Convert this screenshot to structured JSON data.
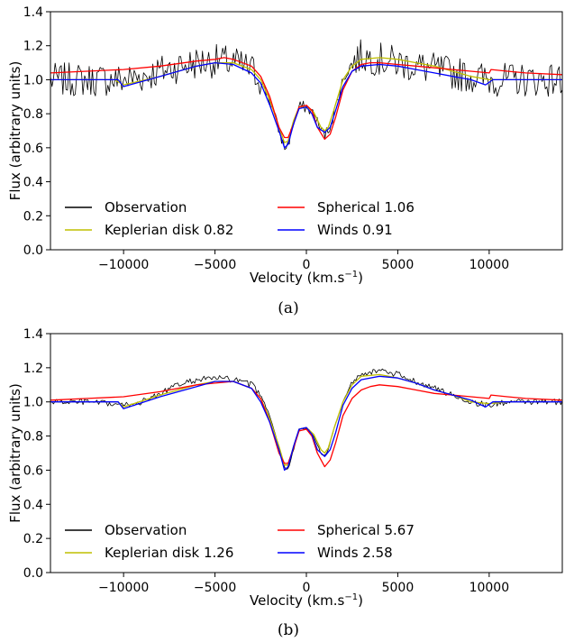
{
  "chart_data": [
    {
      "type": "line",
      "caption": "(a)",
      "xlabel": "Velocity (km.s",
      "xlabel_sup": "−1",
      "xlabel_close": ")",
      "ylabel": "Flux (arbitrary units)",
      "xlim": [
        -14000,
        14000
      ],
      "ylim": [
        0.0,
        1.4
      ],
      "xticks": [
        -10000,
        -5000,
        0,
        5000,
        10000
      ],
      "xtick_labels": [
        "−10000",
        "−5000",
        "0",
        "5000",
        "10000"
      ],
      "yticks": [
        0.0,
        0.2,
        0.4,
        0.6,
        0.8,
        1.0,
        1.2,
        1.4
      ],
      "ytick_labels": [
        "0.0",
        "0.2",
        "0.4",
        "0.6",
        "0.8",
        "1.0",
        "1.2",
        "1.4"
      ],
      "grid": false,
      "legend_position": "lower-left",
      "noise_amplitude": 0.1,
      "series": [
        {
          "name": "Observation",
          "value": "",
          "color": "#000000",
          "noisy": true,
          "x": [
            -14000,
            -13000,
            -12000,
            -11000,
            -10000,
            -9000,
            -8000,
            -7000,
            -6000,
            -5000,
            -4000,
            -3000,
            -2500,
            -2000,
            -1500,
            -1200,
            -1000,
            -700,
            -400,
            0,
            400,
            800,
            1000,
            1200,
            1500,
            2000,
            2500,
            3000,
            4000,
            5000,
            6000,
            7000,
            8000,
            9000,
            10000,
            11000,
            12000,
            13000,
            14000
          ],
          "y": [
            1.0,
            1.0,
            1.0,
            1.0,
            1.0,
            1.02,
            1.05,
            1.08,
            1.1,
            1.11,
            1.1,
            1.06,
            1.0,
            0.88,
            0.7,
            0.6,
            0.62,
            0.75,
            0.84,
            0.84,
            0.8,
            0.7,
            0.68,
            0.7,
            0.8,
            1.0,
            1.1,
            1.14,
            1.12,
            1.1,
            1.08,
            1.06,
            1.04,
            1.02,
            1.0,
            1.0,
            1.0,
            1.0,
            1.0
          ]
        },
        {
          "name": "Keplerian disk",
          "value": "0.82",
          "color": "#bfbf00",
          "noisy": false,
          "x": [
            -14000,
            -12000,
            -10500,
            -10000,
            -8000,
            -7000,
            -6000,
            -5000,
            -4000,
            -3000,
            -2500,
            -2000,
            -1500,
            -1200,
            -1000,
            -700,
            -400,
            0,
            400,
            800,
            1000,
            1200,
            1500,
            2000,
            2500,
            3000,
            4000,
            5000,
            6000,
            7000,
            8000,
            9000,
            10000,
            11000,
            12000,
            14000
          ],
          "y": [
            1.0,
            1.0,
            1.0,
            0.97,
            1.02,
            1.05,
            1.08,
            1.1,
            1.1,
            1.06,
            1.0,
            0.88,
            0.72,
            0.63,
            0.64,
            0.76,
            0.84,
            0.84,
            0.81,
            0.72,
            0.7,
            0.72,
            0.82,
            1.0,
            1.08,
            1.12,
            1.13,
            1.12,
            1.1,
            1.08,
            1.05,
            1.02,
            1.0,
            1.0,
            1.0,
            1.0
          ]
        },
        {
          "name": "Spherical",
          "value": "1.06",
          "color": "#ff0000",
          "noisy": false,
          "x": [
            -14000,
            -12000,
            -10000,
            -8000,
            -6000,
            -5000,
            -4500,
            -4000,
            -3000,
            -2500,
            -2000,
            -1500,
            -1200,
            -1000,
            -700,
            -400,
            0,
            300,
            600,
            1000,
            1300,
            1600,
            2000,
            2500,
            3000,
            3500,
            4000,
            5000,
            6000,
            7000,
            8000,
            9000,
            10000,
            10100,
            11000,
            12000,
            14000
          ],
          "y": [
            1.04,
            1.05,
            1.06,
            1.08,
            1.11,
            1.12,
            1.13,
            1.12,
            1.08,
            1.02,
            0.9,
            0.72,
            0.66,
            0.66,
            0.74,
            0.84,
            0.85,
            0.82,
            0.72,
            0.65,
            0.68,
            0.78,
            0.94,
            1.05,
            1.09,
            1.1,
            1.1,
            1.09,
            1.08,
            1.07,
            1.06,
            1.05,
            1.04,
            1.06,
            1.05,
            1.04,
            1.03
          ]
        },
        {
          "name": "Winds",
          "value": "0.91",
          "color": "#0000ff",
          "noisy": false,
          "x": [
            -14000,
            -12000,
            -10300,
            -10000,
            -8000,
            -6000,
            -5000,
            -4000,
            -3000,
            -2500,
            -2000,
            -1500,
            -1200,
            -1000,
            -700,
            -400,
            0,
            300,
            600,
            1000,
            1300,
            1600,
            2000,
            2500,
            3000,
            4000,
            5000,
            6000,
            7000,
            8000,
            9000,
            9800,
            10200,
            11000,
            12000,
            14000
          ],
          "y": [
            1.0,
            1.0,
            1.0,
            0.96,
            1.02,
            1.08,
            1.1,
            1.09,
            1.04,
            0.98,
            0.85,
            0.7,
            0.6,
            0.62,
            0.74,
            0.83,
            0.84,
            0.8,
            0.72,
            0.69,
            0.72,
            0.82,
            0.96,
            1.05,
            1.08,
            1.09,
            1.08,
            1.06,
            1.04,
            1.02,
            1.0,
            0.97,
            1.0,
            1.0,
            1.0,
            1.0
          ]
        }
      ]
    },
    {
      "type": "line",
      "caption": "(b)",
      "xlabel": "Velocity (km.s",
      "xlabel_sup": "−1",
      "xlabel_close": ")",
      "ylabel": "Flux (arbitrary units)",
      "xlim": [
        -14000,
        14000
      ],
      "ylim": [
        0.0,
        1.4
      ],
      "xticks": [
        -10000,
        -5000,
        0,
        5000,
        10000
      ],
      "xtick_labels": [
        "−10000",
        "−5000",
        "0",
        "5000",
        "10000"
      ],
      "yticks": [
        0.0,
        0.2,
        0.4,
        0.6,
        0.8,
        1.0,
        1.2,
        1.4
      ],
      "ytick_labels": [
        "0.0",
        "0.2",
        "0.4",
        "0.6",
        "0.8",
        "1.0",
        "1.2",
        "1.4"
      ],
      "grid": false,
      "legend_position": "lower-left",
      "noise_amplitude": 0.018,
      "series": [
        {
          "name": "Observation",
          "value": "",
          "color": "#000000",
          "noisy": true,
          "x": [
            -14000,
            -12000,
            -10000,
            -9000,
            -8000,
            -7000,
            -6000,
            -5000,
            -4000,
            -3000,
            -2500,
            -2000,
            -1500,
            -1200,
            -1000,
            -700,
            -400,
            0,
            400,
            800,
            1000,
            1200,
            1500,
            2000,
            2500,
            3000,
            4000,
            5000,
            6000,
            7000,
            8000,
            9000,
            10000,
            11000,
            12000,
            14000
          ],
          "y": [
            1.0,
            1.0,
            0.98,
            1.0,
            1.05,
            1.1,
            1.13,
            1.14,
            1.13,
            1.1,
            1.04,
            0.92,
            0.74,
            0.62,
            0.6,
            0.72,
            0.84,
            0.85,
            0.8,
            0.7,
            0.68,
            0.72,
            0.84,
            1.0,
            1.12,
            1.17,
            1.18,
            1.16,
            1.12,
            1.08,
            1.04,
            1.0,
            0.98,
            1.0,
            1.0,
            1.0
          ]
        },
        {
          "name": "Keplerian disk",
          "value": "1.26",
          "color": "#bfbf00",
          "noisy": false,
          "x": [
            -14000,
            -12000,
            -10300,
            -10000,
            -8000,
            -6000,
            -5000,
            -4000,
            -3000,
            -2500,
            -2000,
            -1500,
            -1200,
            -1000,
            -700,
            -400,
            0,
            400,
            800,
            1000,
            1200,
            1500,
            2000,
            2500,
            3000,
            4000,
            5000,
            6000,
            7000,
            8000,
            9000,
            10000,
            11000,
            14000
          ],
          "y": [
            1.0,
            1.0,
            1.0,
            0.97,
            1.04,
            1.1,
            1.12,
            1.12,
            1.08,
            1.02,
            0.9,
            0.74,
            0.63,
            0.63,
            0.74,
            0.84,
            0.85,
            0.81,
            0.72,
            0.7,
            0.73,
            0.84,
            1.0,
            1.1,
            1.15,
            1.16,
            1.14,
            1.11,
            1.07,
            1.04,
            1.0,
            0.99,
            1.0,
            1.0
          ]
        },
        {
          "name": "Spherical",
          "value": "5.67",
          "color": "#ff0000",
          "noisy": false,
          "x": [
            -14000,
            -12000,
            -10000,
            -8000,
            -6000,
            -5000,
            -4000,
            -3000,
            -2500,
            -2000,
            -1500,
            -1200,
            -1000,
            -700,
            -400,
            0,
            300,
            600,
            1000,
            1300,
            1600,
            2000,
            2500,
            3000,
            3500,
            4000,
            5000,
            6000,
            7000,
            8000,
            9000,
            10000,
            10100,
            11000,
            12000,
            14000
          ],
          "y": [
            1.01,
            1.02,
            1.03,
            1.06,
            1.1,
            1.11,
            1.12,
            1.08,
            1.02,
            0.88,
            0.7,
            0.64,
            0.64,
            0.73,
            0.83,
            0.84,
            0.8,
            0.7,
            0.62,
            0.66,
            0.76,
            0.92,
            1.02,
            1.07,
            1.09,
            1.1,
            1.09,
            1.07,
            1.05,
            1.04,
            1.03,
            1.02,
            1.04,
            1.03,
            1.02,
            1.01
          ]
        },
        {
          "name": "Winds",
          "value": "2.58",
          "color": "#0000ff",
          "noisy": false,
          "x": [
            -14000,
            -12000,
            -10300,
            -10000,
            -8000,
            -6000,
            -5000,
            -4000,
            -3000,
            -2500,
            -2000,
            -1500,
            -1200,
            -1000,
            -700,
            -400,
            0,
            300,
            600,
            1000,
            1300,
            1600,
            2000,
            2500,
            3000,
            4000,
            5000,
            6000,
            7000,
            8000,
            9000,
            9800,
            10200,
            11000,
            12000,
            14000
          ],
          "y": [
            1.0,
            1.0,
            1.0,
            0.96,
            1.03,
            1.09,
            1.12,
            1.12,
            1.08,
            1.0,
            0.88,
            0.72,
            0.6,
            0.62,
            0.74,
            0.84,
            0.85,
            0.81,
            0.72,
            0.68,
            0.72,
            0.82,
            0.98,
            1.08,
            1.13,
            1.15,
            1.14,
            1.11,
            1.07,
            1.04,
            1.01,
            0.97,
            1.0,
            1.0,
            1.0,
            1.0
          ]
        }
      ]
    }
  ]
}
